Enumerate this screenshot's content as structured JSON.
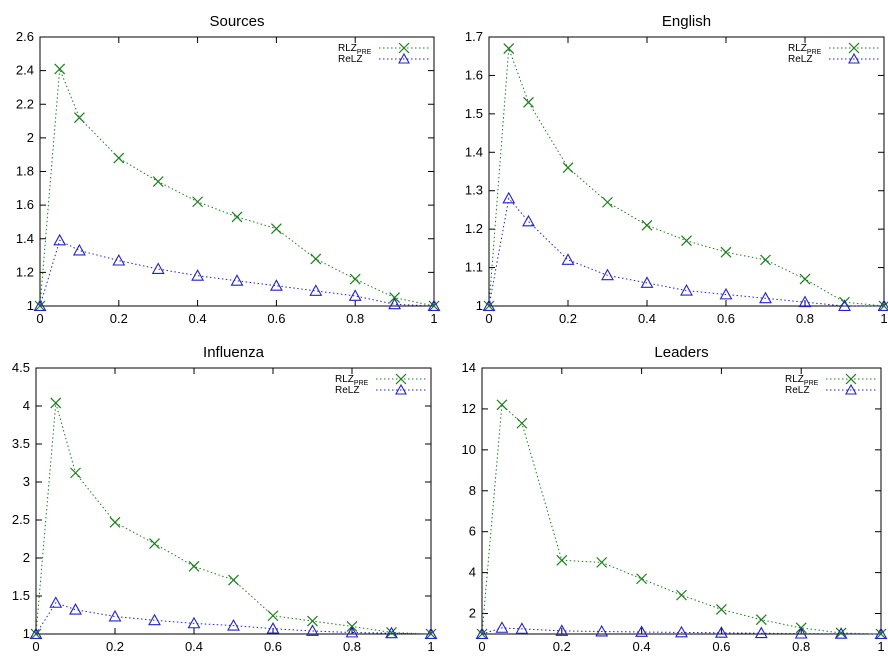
{
  "chart_data": [
    {
      "type": "line",
      "title": "Sources",
      "x": [
        0,
        0.05,
        0.1,
        0.2,
        0.3,
        0.4,
        0.5,
        0.6,
        0.7,
        0.8,
        0.9,
        1
      ],
      "xlim": [
        0,
        1
      ],
      "ylim": [
        1,
        2.6
      ],
      "xticks": [
        "0",
        "0.2",
        "0.4",
        "0.6",
        "0.8",
        "1"
      ],
      "yticks": [
        "1",
        "1.2",
        "1.4",
        "1.6",
        "1.8",
        "2",
        "2.2",
        "2.4",
        "2.6"
      ],
      "series": [
        {
          "name": "RLZ",
          "name_sub": "PRE",
          "values": [
            1.0,
            2.41,
            2.12,
            1.88,
            1.74,
            1.62,
            1.53,
            1.46,
            1.28,
            1.16,
            1.05,
            1.0
          ]
        },
        {
          "name": "ReLZ",
          "values": [
            1.0,
            1.39,
            1.33,
            1.27,
            1.22,
            1.18,
            1.15,
            1.12,
            1.09,
            1.06,
            1.01,
            1.0
          ]
        }
      ],
      "legend": "top-right",
      "grid": false
    },
    {
      "type": "line",
      "title": "English",
      "x": [
        0,
        0.05,
        0.1,
        0.2,
        0.3,
        0.4,
        0.5,
        0.6,
        0.7,
        0.8,
        0.9,
        1
      ],
      "xlim": [
        0,
        1
      ],
      "ylim": [
        1,
        1.7
      ],
      "xticks": [
        "0",
        "0.2",
        "0.4",
        "0.6",
        "0.8",
        "1"
      ],
      "yticks": [
        "1",
        "1.1",
        "1.2",
        "1.3",
        "1.4",
        "1.5",
        "1.6",
        "1.7"
      ],
      "series": [
        {
          "name": "RLZ",
          "name_sub": "PRE",
          "values": [
            1.0,
            1.67,
            1.53,
            1.36,
            1.27,
            1.21,
            1.17,
            1.14,
            1.12,
            1.07,
            1.01,
            1.0
          ]
        },
        {
          "name": "ReLZ",
          "values": [
            1.0,
            1.28,
            1.22,
            1.12,
            1.08,
            1.06,
            1.04,
            1.03,
            1.02,
            1.01,
            1.0,
            1.0
          ]
        }
      ],
      "legend": "top-right",
      "grid": false
    },
    {
      "type": "line",
      "title": "Influenza",
      "x": [
        0,
        0.05,
        0.1,
        0.2,
        0.3,
        0.4,
        0.5,
        0.6,
        0.7,
        0.8,
        0.9,
        1
      ],
      "xlim": [
        0,
        1
      ],
      "ylim": [
        1,
        4.5
      ],
      "xticks": [
        "0",
        "0.2",
        "0.4",
        "0.6",
        "0.8",
        "1"
      ],
      "yticks": [
        "1",
        "1.5",
        "2",
        "2.5",
        "3",
        "3.5",
        "4",
        "4.5"
      ],
      "series": [
        {
          "name": "RLZ",
          "name_sub": "PRE",
          "values": [
            1.0,
            4.04,
            3.12,
            2.47,
            2.19,
            1.89,
            1.71,
            1.24,
            1.17,
            1.1,
            1.02,
            1.0
          ]
        },
        {
          "name": "ReLZ",
          "values": [
            1.0,
            1.41,
            1.32,
            1.23,
            1.18,
            1.14,
            1.11,
            1.07,
            1.04,
            1.02,
            1.01,
            1.0
          ]
        }
      ],
      "legend": "top-right",
      "grid": false
    },
    {
      "type": "line",
      "title": "Leaders",
      "x": [
        0,
        0.05,
        0.1,
        0.2,
        0.3,
        0.4,
        0.5,
        0.6,
        0.7,
        0.8,
        0.9,
        1
      ],
      "xlim": [
        0,
        1
      ],
      "ylim": [
        1,
        14
      ],
      "xticks": [
        "0",
        "0.2",
        "0.4",
        "0.6",
        "0.8",
        "1"
      ],
      "yticks": [
        "2",
        "4",
        "6",
        "8",
        "10",
        "12",
        "14"
      ],
      "series": [
        {
          "name": "RLZ",
          "name_sub": "PRE",
          "values": [
            1.0,
            12.2,
            11.3,
            4.6,
            4.5,
            3.7,
            2.9,
            2.2,
            1.7,
            1.3,
            1.05,
            1.0
          ]
        },
        {
          "name": "ReLZ",
          "values": [
            1.0,
            1.3,
            1.25,
            1.15,
            1.12,
            1.1,
            1.08,
            1.06,
            1.04,
            1.02,
            1.01,
            1.0
          ]
        }
      ],
      "legend": "top-right",
      "grid": false
    }
  ],
  "colors": {
    "rlz": "#1a7f1a",
    "relz": "#2222cc",
    "axis": "#000000"
  },
  "markers": {
    "rlz": "x-cross",
    "relz": "triangle"
  }
}
